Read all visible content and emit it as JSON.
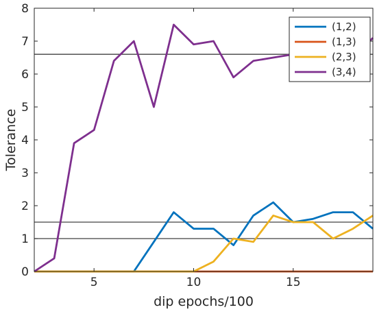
{
  "chart_data": {
    "type": "line",
    "title": "",
    "xlabel": "dip epochs/100",
    "ylabel": "Tolerance",
    "xlim": [
      2,
      19
    ],
    "ylim": [
      0,
      8
    ],
    "xticks": [
      5,
      10,
      15
    ],
    "yticks": [
      0,
      1,
      2,
      3,
      4,
      5,
      6,
      7,
      8
    ],
    "x": [
      2,
      3,
      4,
      5,
      6,
      7,
      8,
      9,
      10,
      11,
      12,
      13,
      14,
      15,
      16,
      17,
      18,
      19
    ],
    "series": [
      {
        "name": "(1,2)",
        "color": "#0072BD",
        "values": [
          0,
          0,
          0,
          0,
          0,
          0,
          0.9,
          1.8,
          1.3,
          1.3,
          0.8,
          1.7,
          2.1,
          1.5,
          1.6,
          1.8,
          1.8,
          1.3
        ]
      },
      {
        "name": "(1,3)",
        "color": "#D95319",
        "values": [
          0,
          0,
          0,
          0,
          0,
          0,
          0,
          0,
          0,
          0,
          0,
          0,
          0,
          0,
          0,
          0,
          0,
          0
        ]
      },
      {
        "name": "(2,3)",
        "color": "#EDB120",
        "values": [
          0,
          0,
          0,
          0,
          0,
          0,
          0,
          0,
          0,
          0.3,
          1.0,
          0.9,
          1.7,
          1.5,
          1.5,
          1.0,
          1.3,
          1.7
        ]
      },
      {
        "name": "(3,4)",
        "color": "#7E2F8E",
        "values": [
          0,
          0.4,
          3.9,
          4.3,
          6.4,
          7.0,
          5.0,
          7.5,
          6.9,
          7.0,
          5.9,
          6.4,
          6.5,
          6.6,
          6.6,
          6.6,
          6.5,
          7.1
        ]
      }
    ],
    "reference_lines": {
      "color": "#404040",
      "y": [
        6.6,
        1.5,
        1.0
      ]
    },
    "grid": false,
    "legend_position": "top-right"
  }
}
